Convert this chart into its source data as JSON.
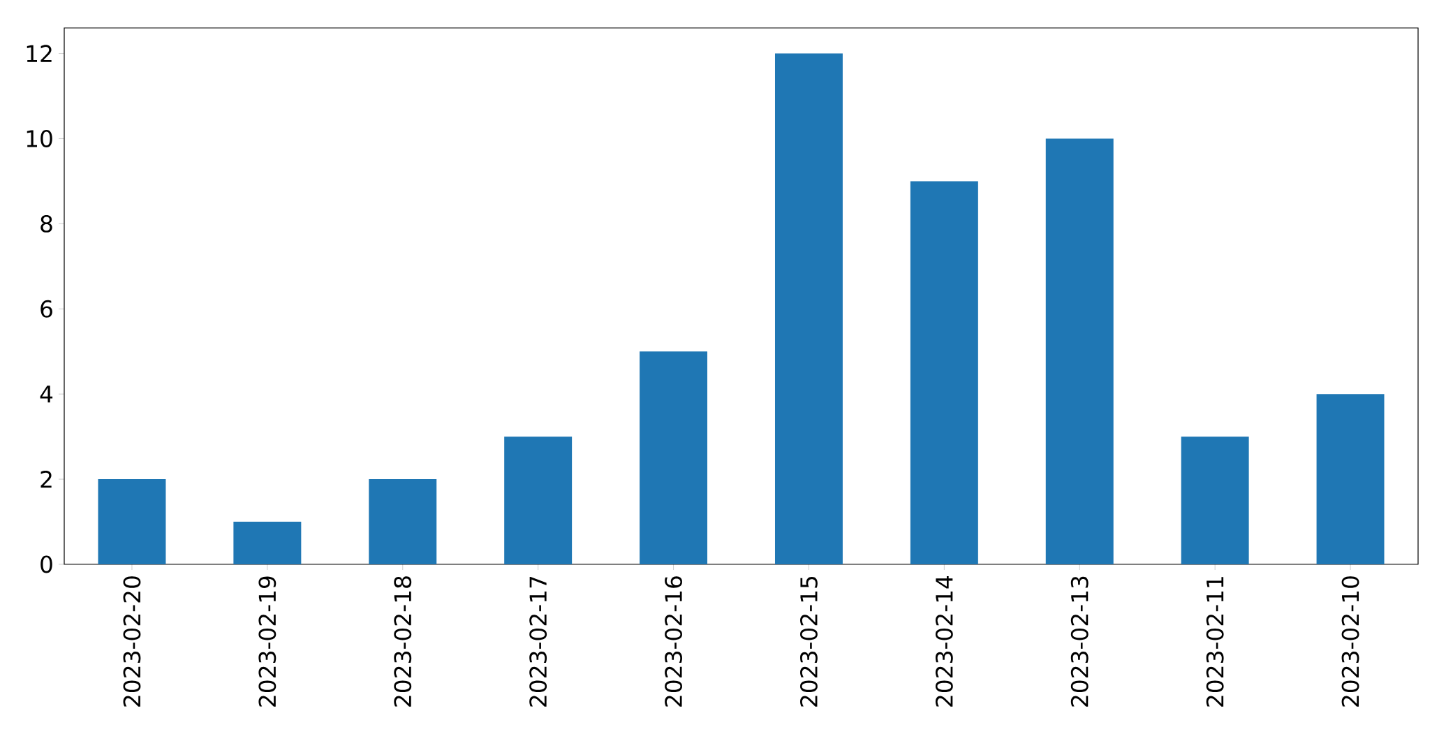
{
  "chart_data": {
    "type": "bar",
    "categories": [
      "2023-02-20",
      "2023-02-19",
      "2023-02-18",
      "2023-02-17",
      "2023-02-16",
      "2023-02-15",
      "2023-02-14",
      "2023-02-13",
      "2023-02-11",
      "2023-02-10"
    ],
    "values": [
      2,
      1,
      2,
      3,
      5,
      12,
      9,
      10,
      3,
      4
    ],
    "color": "#1f77b4",
    "ylim": [
      0,
      12.6
    ],
    "yticks": [
      0,
      2,
      4,
      6,
      8,
      10,
      12
    ],
    "grid": false
  }
}
